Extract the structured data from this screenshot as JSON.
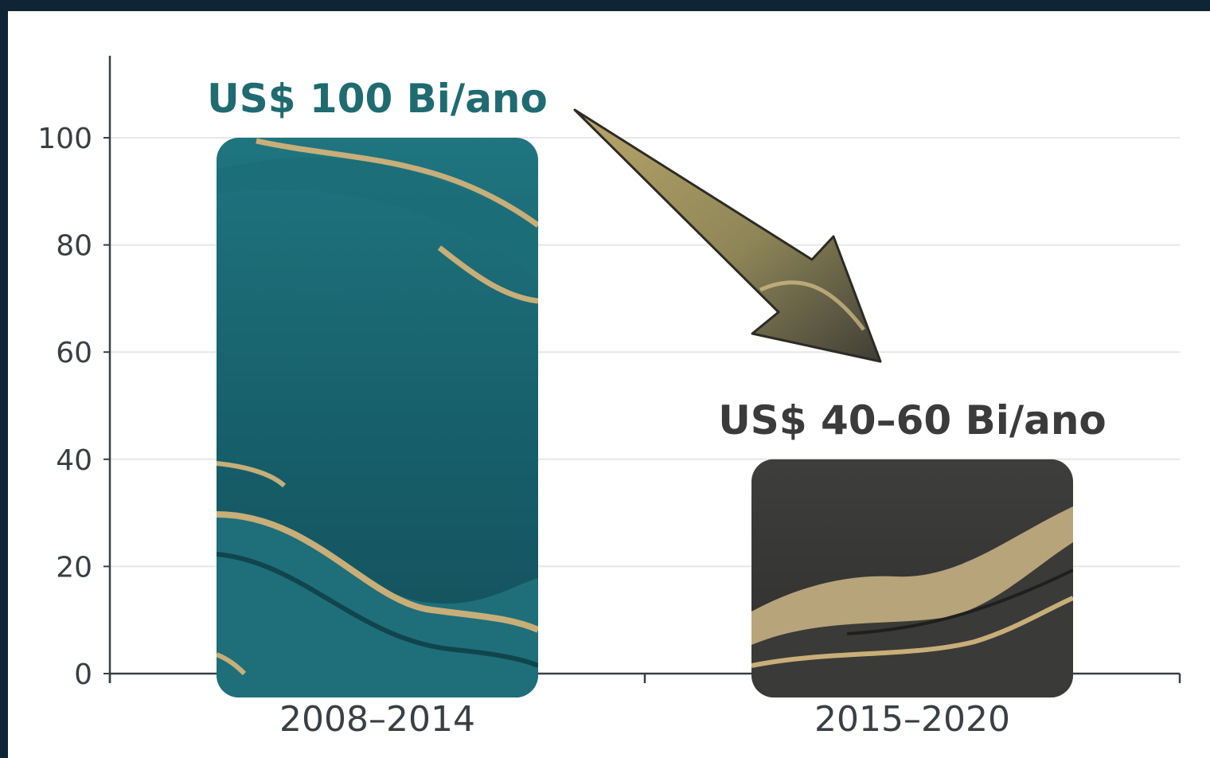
{
  "chart_data": {
    "type": "bar",
    "categories": [
      "2008–2014",
      "2015–2020"
    ],
    "values": [
      100,
      40
    ],
    "data_labels": [
      "US$ 100 Bi/ano",
      "US$ 40–60 Bi/ano"
    ],
    "yticks": [
      0,
      20,
      40,
      60,
      80,
      100
    ],
    "ylim": [
      0,
      100
    ],
    "grid": true,
    "bar_colors": [
      "#1b6570",
      "#3d3d3b"
    ],
    "accent_color": "#c8ae78",
    "annotation": "arrow from first bar label pointing down toward second bar"
  }
}
